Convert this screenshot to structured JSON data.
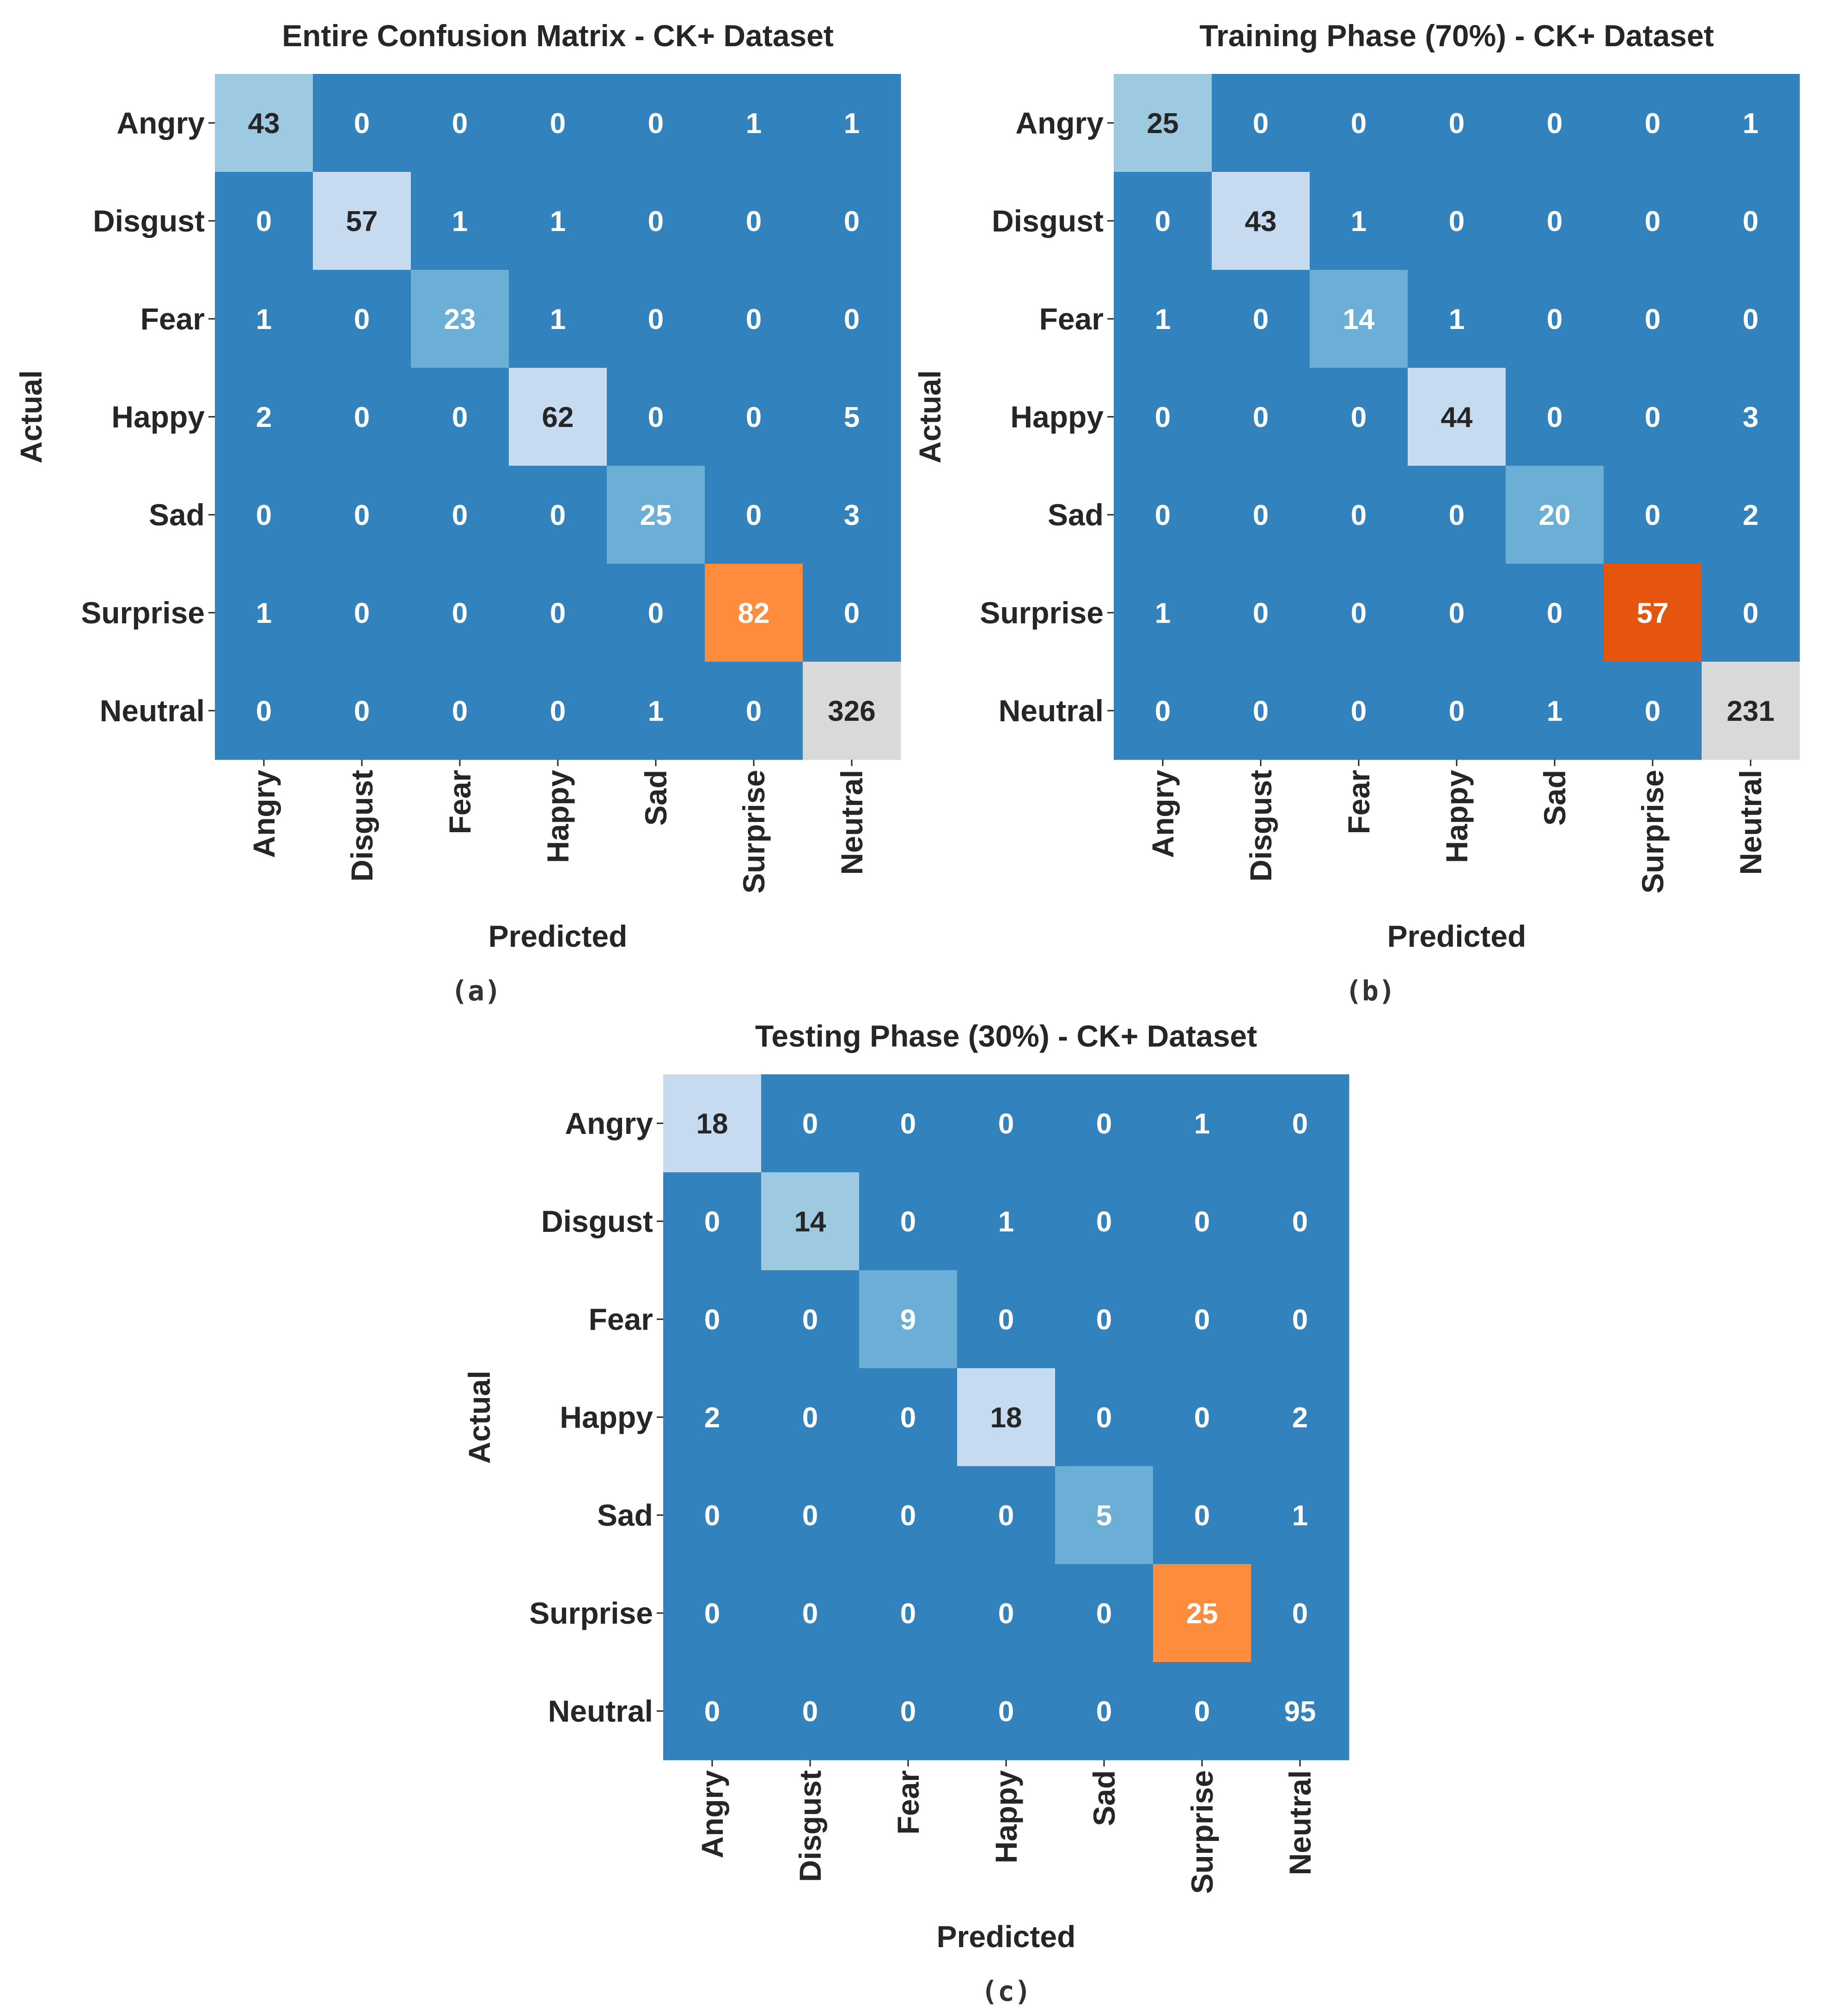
{
  "chart_data": [
    {
      "type": "heatmap",
      "title": "Entire Confusion Matrix - CK+ Dataset",
      "xlabel": "Predicted",
      "ylabel": "Actual",
      "caption": "(a)",
      "row_labels": [
        "Angry",
        "Disgust",
        "Fear",
        "Happy",
        "Sad",
        "Surprise",
        "Neutral"
      ],
      "col_labels": [
        "Angry",
        "Disgust",
        "Fear",
        "Happy",
        "Sad",
        "Surprise",
        "Neutral"
      ],
      "values": [
        [
          43,
          0,
          0,
          0,
          0,
          1,
          1
        ],
        [
          0,
          57,
          1,
          1,
          0,
          0,
          0
        ],
        [
          1,
          0,
          23,
          1,
          0,
          0,
          0
        ],
        [
          2,
          0,
          0,
          62,
          0,
          0,
          5
        ],
        [
          0,
          0,
          0,
          0,
          25,
          0,
          3
        ],
        [
          1,
          0,
          0,
          0,
          0,
          82,
          0
        ],
        [
          0,
          0,
          0,
          0,
          1,
          0,
          326
        ]
      ]
    },
    {
      "type": "heatmap",
      "title": "Training Phase (70%) - CK+ Dataset",
      "xlabel": "Predicted",
      "ylabel": "Actual",
      "caption": "(b)",
      "row_labels": [
        "Angry",
        "Disgust",
        "Fear",
        "Happy",
        "Sad",
        "Surprise",
        "Neutral"
      ],
      "col_labels": [
        "Angry",
        "Disgust",
        "Fear",
        "Happy",
        "Sad",
        "Surprise",
        "Neutral"
      ],
      "values": [
        [
          25,
          0,
          0,
          0,
          0,
          0,
          1
        ],
        [
          0,
          43,
          1,
          0,
          0,
          0,
          0
        ],
        [
          1,
          0,
          14,
          1,
          0,
          0,
          0
        ],
        [
          0,
          0,
          0,
          44,
          0,
          0,
          3
        ],
        [
          0,
          0,
          0,
          0,
          20,
          0,
          2
        ],
        [
          1,
          0,
          0,
          0,
          0,
          57,
          0
        ],
        [
          0,
          0,
          0,
          0,
          1,
          0,
          231
        ]
      ]
    },
    {
      "type": "heatmap",
      "title": "Testing Phase (30%)  - CK+ Dataset",
      "xlabel": "Predicted",
      "ylabel": "Actual",
      "caption": "(c)",
      "row_labels": [
        "Angry",
        "Disgust",
        "Fear",
        "Happy",
        "Sad",
        "Surprise",
        "Neutral"
      ],
      "col_labels": [
        "Angry",
        "Disgust",
        "Fear",
        "Happy",
        "Sad",
        "Surprise",
        "Neutral"
      ],
      "values": [
        [
          18,
          0,
          0,
          0,
          0,
          1,
          0
        ],
        [
          0,
          14,
          0,
          1,
          0,
          0,
          0
        ],
        [
          0,
          0,
          9,
          0,
          0,
          0,
          0
        ],
        [
          2,
          0,
          0,
          18,
          0,
          0,
          2
        ],
        [
          0,
          0,
          0,
          0,
          5,
          0,
          1
        ],
        [
          0,
          0,
          0,
          0,
          0,
          25,
          0
        ],
        [
          0,
          0,
          0,
          0,
          0,
          0,
          95
        ]
      ]
    }
  ],
  "colors": {
    "base": "#3182bd",
    "light": "#6baed6",
    "lighter": "#9ecae1",
    "lightest": "#c6dbef",
    "orange": "#fd8d3c",
    "dark_orange": "#e6550d",
    "gray": "#d9d9d9",
    "text_light": "#ffffff",
    "text_dark": "#262626"
  }
}
